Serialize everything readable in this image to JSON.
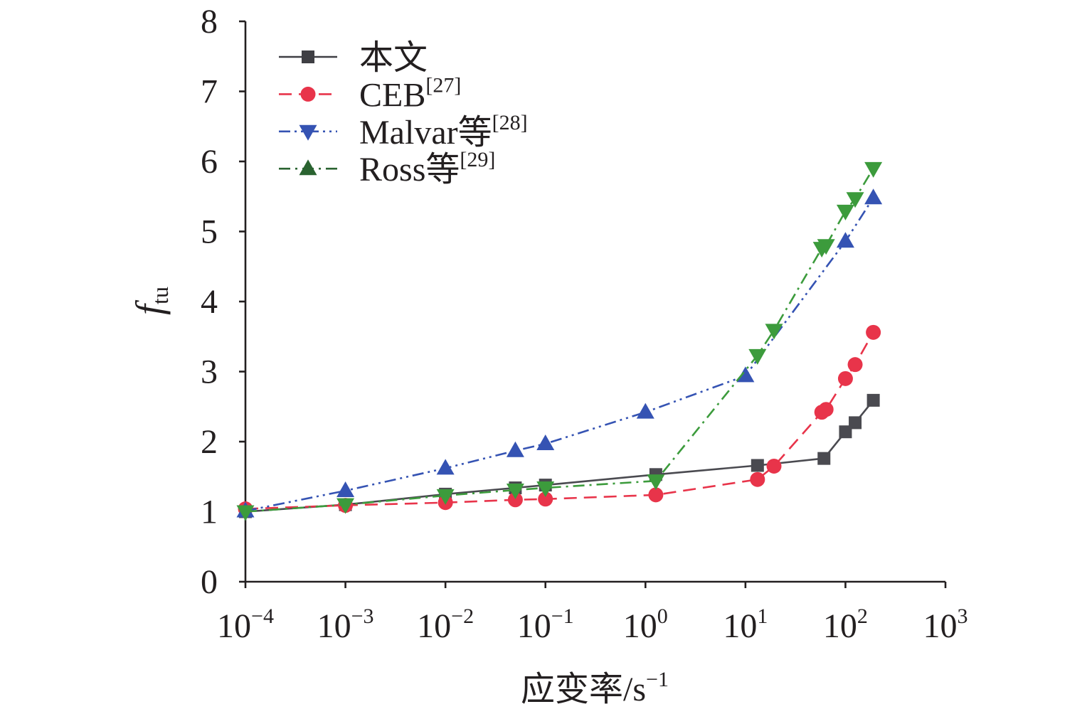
{
  "chart_data": {
    "type": "line",
    "xscale": "log",
    "xlim": [
      0.0001,
      1000
    ],
    "ylim": [
      0,
      8
    ],
    "grid": false,
    "legend_position": "top-left",
    "xlabel": {
      "main": "应变率/s",
      "sup": "−1"
    },
    "ylabel": {
      "main": "f",
      "sub": "tu"
    },
    "yticks": [
      "0",
      "1",
      "2",
      "3",
      "4",
      "5",
      "6",
      "7",
      "8"
    ],
    "xticks": [
      {
        "value": 0.0001,
        "base": "10",
        "exp": "−4"
      },
      {
        "value": 0.001,
        "base": "10",
        "exp": "−3"
      },
      {
        "value": 0.01,
        "base": "10",
        "exp": "−2"
      },
      {
        "value": 0.1,
        "base": "10",
        "exp": "−1"
      },
      {
        "value": 1,
        "base": "10",
        "exp": "0"
      },
      {
        "value": 10,
        "base": "10",
        "exp": "1"
      },
      {
        "value": 100,
        "base": "10",
        "exp": "2"
      },
      {
        "value": 1000,
        "base": "10",
        "exp": "3"
      }
    ],
    "series": [
      {
        "name": "本文",
        "color": "#4a4a50",
        "legend_color": "#3f3f44",
        "line_style": "solid",
        "marker": "square",
        "legend_marker": "square",
        "points": [
          [
            0.0001,
            1.0
          ],
          [
            0.001,
            1.1
          ],
          [
            0.01,
            1.25
          ],
          [
            0.05,
            1.34
          ],
          [
            0.1,
            1.38
          ],
          [
            1.27,
            1.53
          ],
          [
            13.2,
            1.66
          ],
          [
            61,
            1.76
          ],
          [
            100,
            2.14
          ],
          [
            125,
            2.27
          ],
          [
            190,
            2.59
          ]
        ]
      },
      {
        "name": "CEB",
        "ref": "[27]",
        "color": "#e8344a",
        "legend_color": "#e8344a",
        "line_style": "dashed",
        "marker": "circle",
        "legend_marker": "circle",
        "points": [
          [
            0.0001,
            1.04
          ],
          [
            0.001,
            1.09
          ],
          [
            0.01,
            1.13
          ],
          [
            0.05,
            1.17
          ],
          [
            0.1,
            1.18
          ],
          [
            1.27,
            1.24
          ],
          [
            13.2,
            1.46
          ],
          [
            19.3,
            1.65
          ],
          [
            58,
            2.42
          ],
          [
            64,
            2.46
          ],
          [
            100,
            2.9
          ],
          [
            125,
            3.1
          ],
          [
            190,
            3.56
          ]
        ]
      },
      {
        "name": "Malvar等",
        "ref": "[28]",
        "color": "#3553b3",
        "legend_color": "#3553b3",
        "line_style": "dash-dot-dot",
        "marker": "triangle-up",
        "legend_marker": "triangle-down",
        "points": [
          [
            0.0001,
            1.01
          ],
          [
            0.001,
            1.3
          ],
          [
            0.01,
            1.62
          ],
          [
            0.05,
            1.87
          ],
          [
            0.1,
            1.97
          ],
          [
            1,
            2.42
          ],
          [
            10,
            2.94
          ],
          [
            100,
            4.86
          ],
          [
            190,
            5.48
          ]
        ]
      },
      {
        "name": "Ross等",
        "ref": "[29]",
        "color": "#3c9b3c",
        "legend_color": "#2a6330",
        "line_style": "dash-dot",
        "marker": "triangle-down",
        "legend_marker": "triangle-up",
        "points": [
          [
            0.0001,
            1.0
          ],
          [
            0.001,
            1.1
          ],
          [
            0.01,
            1.23
          ],
          [
            0.05,
            1.31
          ],
          [
            0.1,
            1.34
          ],
          [
            1.27,
            1.44
          ],
          [
            13.2,
            3.23
          ],
          [
            19.3,
            3.59
          ],
          [
            58,
            4.76
          ],
          [
            64,
            4.8
          ],
          [
            100,
            5.29
          ],
          [
            125,
            5.47
          ],
          [
            190,
            5.9
          ]
        ]
      }
    ]
  }
}
